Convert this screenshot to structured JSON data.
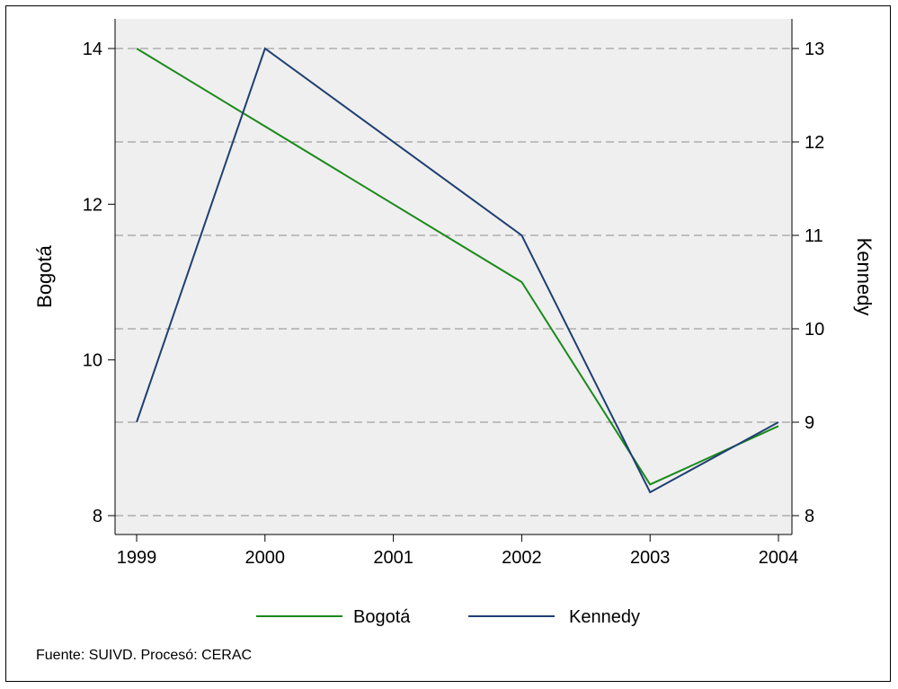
{
  "chart_data": {
    "type": "line",
    "x": [
      1999,
      2000,
      2002,
      2003,
      2004
    ],
    "x_ticks": [
      "1999",
      "2000",
      "2001",
      "2002",
      "2003",
      "2004"
    ],
    "xlim": [
      1999,
      2004
    ],
    "y_left": {
      "label": "Bogotá",
      "ticks": [
        "8",
        "10",
        "12",
        "14"
      ],
      "lim": [
        8,
        14
      ]
    },
    "y_right": {
      "label": "Kennedy",
      "ticks": [
        "8",
        "9",
        "10",
        "11",
        "12",
        "13"
      ],
      "lim": [
        8,
        13
      ]
    },
    "grid": "dashed horizontal at right-axis ticks",
    "series": [
      {
        "name": "Bogotá",
        "axis": "left",
        "color": "#1a8a1a",
        "values": [
          14,
          13,
          11,
          8.4,
          9.15
        ]
      },
      {
        "name": "Kennedy",
        "axis": "right",
        "color": "#1f3f73",
        "values": [
          9,
          13,
          11,
          8.25,
          9
        ]
      }
    ],
    "legend_placement": "bottom"
  },
  "note": "Fuente: SUIVD. Procesó: CERAC"
}
